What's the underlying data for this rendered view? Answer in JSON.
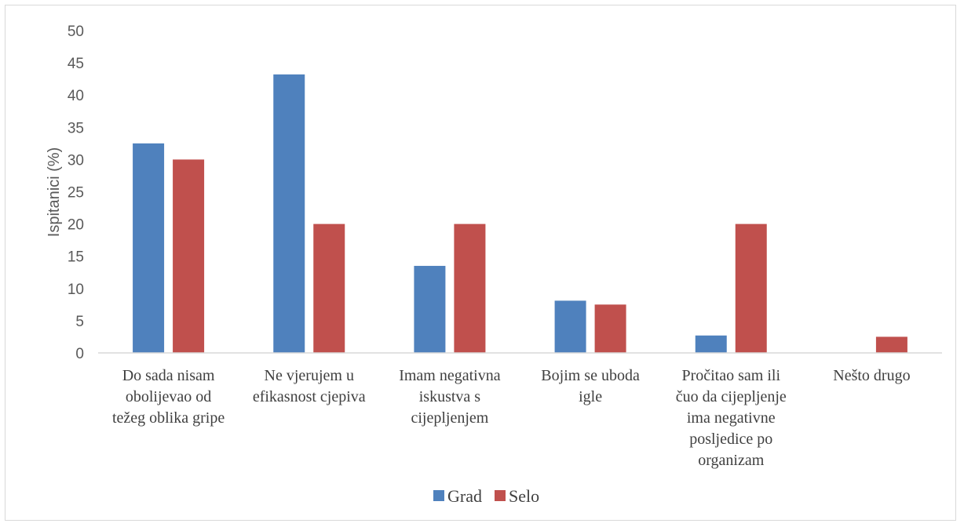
{
  "chart_data": {
    "type": "bar",
    "title": "",
    "xlabel": "",
    "ylabel": "Ispitanici (%)",
    "ylim": [
      0,
      50
    ],
    "yticks": [
      0,
      5,
      10,
      15,
      20,
      25,
      30,
      35,
      40,
      45,
      50
    ],
    "grid": false,
    "legend_position": "bottom",
    "categories": [
      [
        "Do sada nisam",
        "obolijevao od",
        "težeg oblika gripe"
      ],
      [
        "Ne vjerujem u",
        "efikasnost cjepiva"
      ],
      [
        "Imam negativna",
        "iskustva s",
        "cijepljenjem"
      ],
      [
        "Bojim se uboda",
        "igle"
      ],
      [
        "Pročitao sam ili",
        "čuo da cijepljenje",
        "ima negativne",
        "posljedice po",
        "organizam"
      ],
      [
        "Nešto drugo"
      ]
    ],
    "series": [
      {
        "name": "Grad",
        "color": "#4f81bd",
        "values": [
          32.5,
          43.2,
          13.5,
          8.1,
          2.7,
          0
        ]
      },
      {
        "name": "Selo",
        "color": "#c0504d",
        "values": [
          30,
          20,
          20,
          7.5,
          20,
          2.5
        ]
      }
    ]
  }
}
